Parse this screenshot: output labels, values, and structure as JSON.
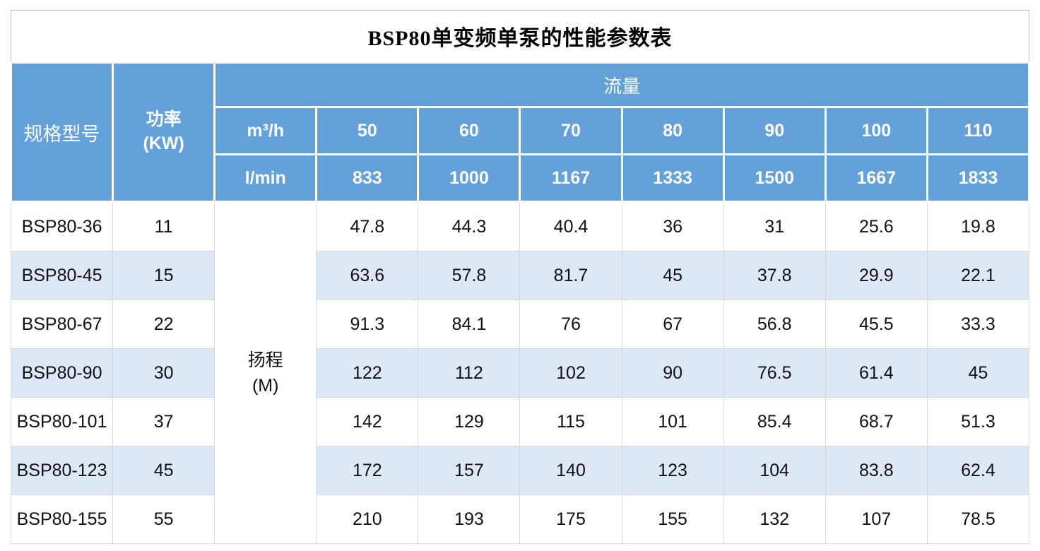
{
  "page": {
    "title": "BSP80单变频单泵的性能参数表"
  },
  "colors": {
    "header_blue": "#64A1DA",
    "stripe_blue": "#DCE8F6",
    "body_border": "#D9D9D9",
    "title_border": "#BFBFBF",
    "header_text": "#FFFFFF",
    "body_text": "#111111"
  },
  "header": {
    "spec_label": "规格型号",
    "power_line1": "功率",
    "power_line2": "(KW)",
    "flow_label": "流量",
    "unit_row1": "m³/h",
    "unit_row2": "l/min",
    "flow_m3h": [
      "50",
      "60",
      "70",
      "80",
      "90",
      "100",
      "110"
    ],
    "flow_lmin": [
      "833",
      "1000",
      "1167",
      "1333",
      "1500",
      "1667",
      "1833"
    ]
  },
  "body": {
    "head_line1": "扬程",
    "head_line2": "(M)",
    "rows": [
      {
        "model": "BSP80-36",
        "power": "11",
        "values": [
          "47.8",
          "44.3",
          "40.4",
          "36",
          "31",
          "25.6",
          "19.8"
        ]
      },
      {
        "model": "BSP80-45",
        "power": "15",
        "values": [
          "63.6",
          "57.8",
          "81.7",
          "45",
          "37.8",
          "29.9",
          "22.1"
        ]
      },
      {
        "model": "BSP80-67",
        "power": "22",
        "values": [
          "91.3",
          "84.1",
          "76",
          "67",
          "56.8",
          "45.5",
          "33.3"
        ]
      },
      {
        "model": "BSP80-90",
        "power": "30",
        "values": [
          "122",
          "112",
          "102",
          "90",
          "76.5",
          "61.4",
          "45"
        ]
      },
      {
        "model": "BSP80-101",
        "power": "37",
        "values": [
          "142",
          "129",
          "115",
          "101",
          "85.4",
          "68.7",
          "51.3"
        ]
      },
      {
        "model": "BSP80-123",
        "power": "45",
        "values": [
          "172",
          "157",
          "140",
          "123",
          "104",
          "83.8",
          "62.4"
        ]
      },
      {
        "model": "BSP80-155",
        "power": "55",
        "values": [
          "210",
          "193",
          "175",
          "155",
          "132",
          "107",
          "78.5"
        ]
      }
    ]
  }
}
